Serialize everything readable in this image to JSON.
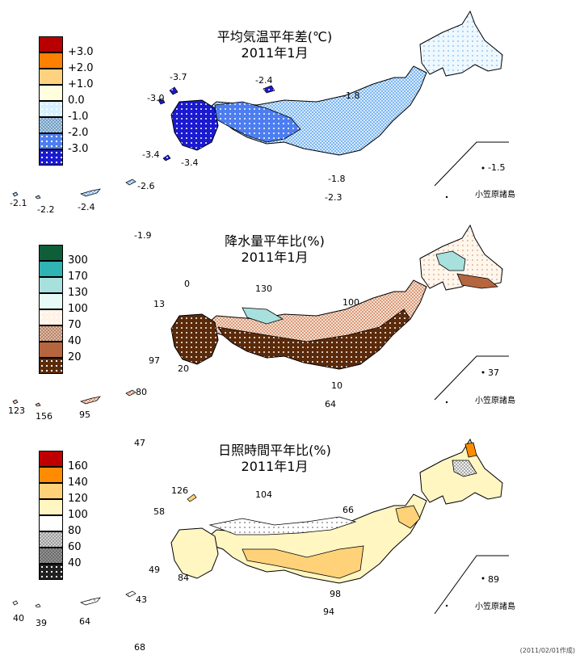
{
  "panels": [
    {
      "id": "temperature",
      "title_line1": "平均気温平年差(℃)",
      "title_line2": "2011年1月",
      "legend": [
        {
          "label": "+3.0",
          "color": "#b80000",
          "pattern": "solid"
        },
        {
          "label": "+2.0",
          "color": "#ff8000",
          "pattern": "solid"
        },
        {
          "label": "+1.0",
          "color": "#ffd280",
          "pattern": "solid"
        },
        {
          "label": "0.0",
          "color": "#ffffe0",
          "pattern": "solid"
        },
        {
          "label": "-1.0",
          "color": "#d6f0ff",
          "pattern": "dots"
        },
        {
          "label": "-2.0",
          "color": "#a7cff2",
          "pattern": "check"
        },
        {
          "label": "-3.0",
          "color": "#4d7ef0",
          "pattern": "dots"
        },
        {
          "label": "",
          "color": "#1a1ad0",
          "pattern": "dots"
        }
      ],
      "values": [
        "-3.7",
        "-2.4",
        "-3.0",
        "-1.8",
        "-3.4",
        "-3.4",
        "-1.8",
        "-2.3",
        "-2.6",
        "-2.1",
        "-2.2",
        "-2.4",
        "-1.9",
        "-1.5"
      ],
      "inset_label": "小笠原諸島"
    },
    {
      "id": "precipitation",
      "title_line1": "降水量平年比(%)",
      "title_line2": "2011年1月",
      "legend": [
        {
          "label": "300",
          "color": "#0f5e3a",
          "pattern": "solid"
        },
        {
          "label": "170",
          "color": "#2fb3b3",
          "pattern": "solid"
        },
        {
          "label": "130",
          "color": "#a7e0dd",
          "pattern": "solid"
        },
        {
          "label": "100",
          "color": "#e6faf6",
          "pattern": "solid"
        },
        {
          "label": "70",
          "color": "#fff3e6",
          "pattern": "dots"
        },
        {
          "label": "40",
          "color": "#e7b59a",
          "pattern": "check"
        },
        {
          "label": "20",
          "color": "#b5663f",
          "pattern": "solid"
        },
        {
          "label": "",
          "color": "#5a2a0a",
          "pattern": "dots"
        }
      ],
      "values": [
        "0",
        "130",
        "13",
        "100",
        "97",
        "20",
        "10",
        "64",
        "80",
        "123",
        "156",
        "95",
        "47",
        "37"
      ],
      "inset_label": "小笠原諸島"
    },
    {
      "id": "sunshine",
      "title_line1": "日照時間平年比(%)",
      "title_line2": "2011年1月",
      "legend": [
        {
          "label": "160",
          "color": "#c00000",
          "pattern": "solid"
        },
        {
          "label": "140",
          "color": "#ff8c00",
          "pattern": "solid"
        },
        {
          "label": "120",
          "color": "#ffd27a",
          "pattern": "solid"
        },
        {
          "label": "100",
          "color": "#fff6c2",
          "pattern": "solid"
        },
        {
          "label": "80",
          "color": "#ffffff",
          "pattern": "dots"
        },
        {
          "label": "60",
          "color": "#d0d0d0",
          "pattern": "check"
        },
        {
          "label": "40",
          "color": "#909090",
          "pattern": "check"
        },
        {
          "label": "",
          "color": "#202020",
          "pattern": "dots"
        }
      ],
      "values": [
        "126",
        "104",
        "58",
        "66",
        "49",
        "84",
        "98",
        "94",
        "43",
        "40",
        "39",
        "64",
        "68",
        "89"
      ],
      "inset_label": "小笠原諸島"
    }
  ],
  "footer_text": "(2011/02/01作成)"
}
